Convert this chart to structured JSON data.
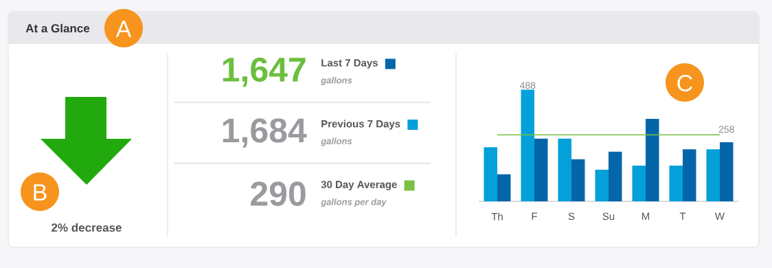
{
  "chart_data": [
    {
      "type": "other",
      "title": "At a Glance",
      "annotations": [
        "A",
        "2% decrease",
        "B"
      ]
    },
    {
      "type": "bar",
      "categories": [
        "Th",
        "F",
        "S",
        "Su",
        "M",
        "T",
        "W"
      ],
      "series": [
        {
          "name": "Previous 7 Days",
          "color": "#03a0d9",
          "values": [
            236,
            488,
            274,
            138,
            156,
            156,
            227
          ],
          "value_labels": [
            null,
            "488",
            null,
            null,
            null,
            null,
            null
          ]
        },
        {
          "name": "Last 7 Days",
          "color": "#0466a9",
          "values": [
            118,
            274,
            184,
            217,
            360,
            227,
            258
          ],
          "value_labels": [
            null,
            null,
            null,
            null,
            null,
            null,
            "258"
          ]
        }
      ],
      "tick_labels": "x",
      "legend": "left",
      "ref_lines": [
        {
          "axis": "y",
          "value": 290,
          "label": "30 Day Average",
          "color": "#7ac143"
        }
      ],
      "annotations": [
        "1,647",
        "gallons",
        "1,684",
        "gallons",
        "290",
        "gallons per day",
        "C"
      ]
    }
  ]
}
